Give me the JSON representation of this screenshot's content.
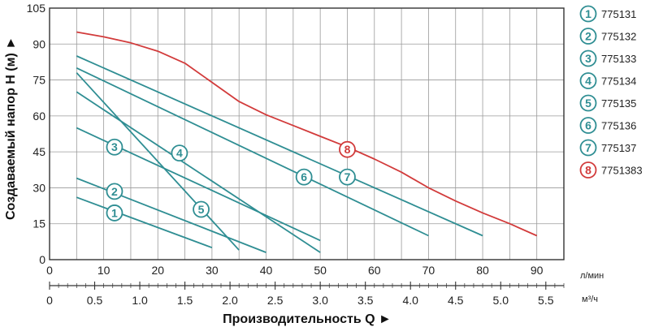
{
  "chart_data": {
    "type": "line",
    "ylabel": "Создаваемый напор H (м) ►",
    "xlabel": "Производительность Q ►",
    "x_unit_lpm": "л/мин",
    "x_unit_m3h": "м³/ч",
    "xlim": [
      0,
      95
    ],
    "ylim": [
      0,
      105
    ],
    "x_ticks_lpm": [
      "0",
      "10",
      "20",
      "30",
      "40",
      "50",
      "60",
      "70",
      "80",
      "90"
    ],
    "x_ticks_m3h": [
      "0",
      "0.5",
      "1.0",
      "1.5",
      "2.0",
      "2.5",
      "3.0",
      "3.5",
      "4.0",
      "4.5",
      "5.0",
      "5.5"
    ],
    "y_ticks": [
      "0",
      "15",
      "30",
      "45",
      "60",
      "75",
      "90",
      "105"
    ],
    "grid": true,
    "series": [
      {
        "marker": "1",
        "name": "775131",
        "color": "#2f8e93",
        "x": [
          5,
          30
        ],
        "y": [
          26,
          5
        ],
        "label_at": [
          12,
          19.5
        ]
      },
      {
        "marker": "2",
        "name": "775132",
        "color": "#2f8e93",
        "x": [
          5,
          40
        ],
        "y": [
          34,
          3
        ],
        "label_at": [
          12,
          28.5
        ]
      },
      {
        "marker": "3",
        "name": "775133",
        "color": "#2f8e93",
        "x": [
          5,
          50
        ],
        "y": [
          55,
          8
        ],
        "label_at": [
          12,
          47
        ]
      },
      {
        "marker": "4",
        "name": "775134",
        "color": "#2f8e93",
        "x": [
          5,
          50
        ],
        "y": [
          70,
          3
        ],
        "label_at": [
          24,
          44.5
        ]
      },
      {
        "marker": "5",
        "name": "775135",
        "color": "#2f8e93",
        "x": [
          5,
          35
        ],
        "y": [
          78,
          4
        ],
        "label_at": [
          28,
          21
        ]
      },
      {
        "marker": "6",
        "name": "775136",
        "color": "#2f8e93",
        "x": [
          5,
          70
        ],
        "y": [
          80,
          10
        ],
        "label_at": [
          47,
          34.5
        ]
      },
      {
        "marker": "7",
        "name": "775137",
        "color": "#2f8e93",
        "x": [
          5,
          80
        ],
        "y": [
          85,
          10
        ],
        "label_at": [
          55,
          34.5
        ]
      },
      {
        "marker": "8",
        "name": "7751383",
        "color": "#d23b3b",
        "x": [
          5,
          10,
          15,
          20,
          25,
          30,
          35,
          40,
          45,
          50,
          55,
          60,
          65,
          70,
          75,
          80,
          85,
          90
        ],
        "y": [
          95,
          93,
          90.5,
          87,
          82,
          74,
          66,
          60.5,
          56,
          51.5,
          47,
          42,
          36.5,
          30,
          24.5,
          19.5,
          15,
          10
        ],
        "label_at": [
          55,
          46
        ]
      }
    ]
  }
}
